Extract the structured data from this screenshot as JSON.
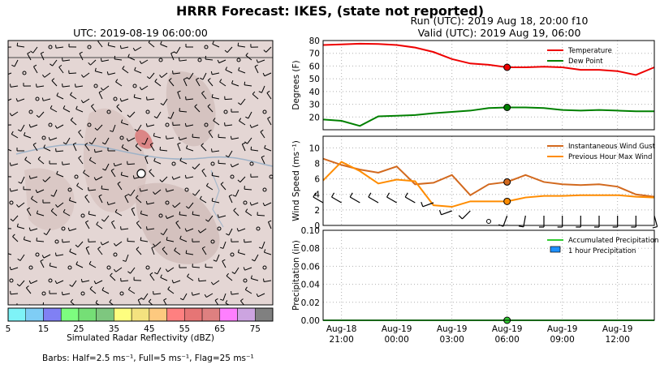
{
  "title": "HRRR Forecast: IKES, (state not reported)",
  "run_label": "Run (UTC): 2019 Aug 18, 20:00 f10",
  "valid_label": "Valid (UTC): 2019 Aug 19, 06:00",
  "map": {
    "title": "UTC: 2019-08-19 06:00:00",
    "colorbar_label": "Simulated Radar Reflectivity (dBZ)",
    "colorbar_ticks": [
      "5",
      "15",
      "25",
      "35",
      "45",
      "55",
      "65",
      "75"
    ],
    "colorbar_colors": [
      "#7ef3f7",
      "#7fcdf5",
      "#8080f4",
      "#7dfd7f",
      "#75df76",
      "#7ec77f",
      "#fefe7f",
      "#f4e27f",
      "#fdc97f",
      "#fe8080",
      "#e67575",
      "#de8080",
      "#fe7ffe",
      "#cca4e0",
      "#808080"
    ],
    "barb_note": "Barbs: Half=2.5 ms⁻¹, Full=5 ms⁻¹, Flag=25 ms⁻¹"
  },
  "chart_data": [
    {
      "type": "line",
      "ylabel": "Degrees (F)",
      "ylim": [
        10,
        80
      ],
      "yticks": [
        "20",
        "30",
        "40",
        "50",
        "60",
        "70",
        "80"
      ],
      "x": [
        "2019-08-18 20:00",
        "2019-08-18 21:00",
        "2019-08-18 22:00",
        "2019-08-18 23:00",
        "2019-08-19 00:00",
        "2019-08-19 01:00",
        "2019-08-19 02:00",
        "2019-08-19 03:00",
        "2019-08-19 04:00",
        "2019-08-19 05:00",
        "2019-08-19 06:00",
        "2019-08-19 07:00",
        "2019-08-19 08:00",
        "2019-08-19 09:00",
        "2019-08-19 10:00",
        "2019-08-19 11:00",
        "2019-08-19 12:00",
        "2019-08-19 13:00",
        "2019-08-19 14:00"
      ],
      "series": [
        {
          "name": "Temperature",
          "color": "#ee0000",
          "values": [
            76.5,
            77,
            77.5,
            77.3,
            76.5,
            74.5,
            71,
            65.5,
            62,
            61,
            59,
            59,
            59.5,
            59,
            57,
            57,
            56,
            53,
            59
          ]
        },
        {
          "name": "Dew Point",
          "color": "#008000",
          "values": [
            18,
            17,
            13,
            20.5,
            21,
            21.5,
            23,
            24,
            25,
            27,
            27.5,
            27.5,
            27,
            25.5,
            25,
            25.5,
            25,
            24.5,
            24.5
          ]
        }
      ],
      "highlight_x": "2019-08-19 06:00",
      "legend": "top-right",
      "grid": true
    },
    {
      "type": "line",
      "ylabel": "Wind Speed (ms⁻¹)",
      "ylim": [
        0,
        11.5
      ],
      "yticks": [
        "0",
        "2",
        "4",
        "6",
        "8",
        "10"
      ],
      "x": [
        "2019-08-18 20:00",
        "2019-08-18 21:00",
        "2019-08-18 22:00",
        "2019-08-18 23:00",
        "2019-08-19 00:00",
        "2019-08-19 01:00",
        "2019-08-19 02:00",
        "2019-08-19 03:00",
        "2019-08-19 04:00",
        "2019-08-19 05:00",
        "2019-08-19 06:00",
        "2019-08-19 07:00",
        "2019-08-19 08:00",
        "2019-08-19 09:00",
        "2019-08-19 10:00",
        "2019-08-19 11:00",
        "2019-08-19 12:00",
        "2019-08-19 13:00",
        "2019-08-19 14:00"
      ],
      "series": [
        {
          "name": "Instantaneous Wind Gust",
          "color": "#d2691e",
          "values": [
            8.6,
            7.8,
            7.2,
            6.8,
            7.6,
            5.3,
            5.5,
            6.5,
            3.9,
            5.3,
            5.6,
            6.5,
            5.6,
            5.3,
            5.2,
            5.3,
            5.0,
            4.0,
            3.7
          ]
        },
        {
          "name": "Previous Hour Max Wind",
          "color": "#ff8c00",
          "values": [
            5.8,
            8.2,
            7.0,
            5.4,
            5.9,
            5.7,
            2.6,
            2.4,
            3.1,
            3.1,
            3.1,
            3.6,
            3.8,
            3.8,
            3.9,
            3.9,
            3.9,
            3.7,
            3.6
          ]
        }
      ],
      "barb_directions_deg": [
        300,
        300,
        300,
        300,
        300,
        300,
        250,
        250,
        225,
        null,
        200,
        190,
        180,
        180,
        180,
        180,
        180,
        180,
        165
      ],
      "barb_speeds_ms": [
        5,
        5,
        5,
        5,
        5,
        5,
        5,
        5,
        5,
        0,
        5,
        5,
        5,
        5,
        5,
        5,
        5,
        5,
        5
      ],
      "highlight_x": "2019-08-19 06:00",
      "legend": "top-right",
      "grid": true
    },
    {
      "type": "bar",
      "ylabel": "Precipitation (in)",
      "ylim": [
        0,
        0.1
      ],
      "yticks": [
        "0.00",
        "0.02",
        "0.04",
        "0.06",
        "0.08",
        "0.10"
      ],
      "x": [
        "2019-08-18 20:00",
        "2019-08-19 14:00"
      ],
      "series": [
        {
          "name": "Accumulated Precipitation",
          "color": "#32cd32",
          "values": [
            0,
            0
          ]
        },
        {
          "name": "1 hour Precipitation",
          "color": "#1e90ff",
          "values": [
            0,
            0
          ]
        }
      ],
      "highlight_x": "2019-08-19 06:00",
      "xtick_labels": [
        [
          "Aug-18",
          "21:00"
        ],
        [
          "Aug-19",
          "00:00"
        ],
        [
          "Aug-19",
          "03:00"
        ],
        [
          "Aug-19",
          "06:00"
        ],
        [
          "Aug-19",
          "09:00"
        ],
        [
          "Aug-19",
          "12:00"
        ]
      ],
      "legend": "top-right",
      "grid": true
    }
  ]
}
